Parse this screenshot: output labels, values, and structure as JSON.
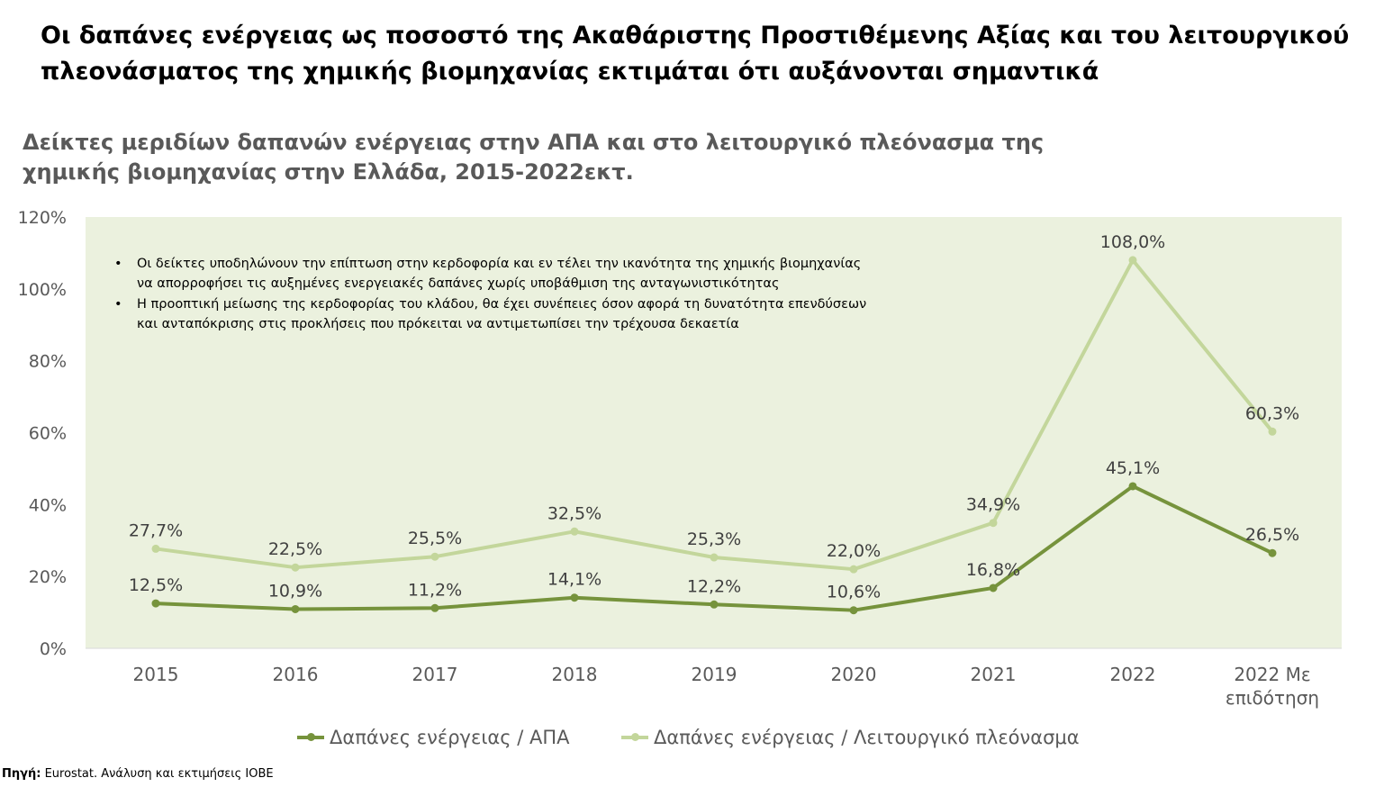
{
  "headline": "Οι δαπάνες ενέργειας ως ποσοστό της Ακαθάριστης Προστιθέμενης Αξίας και του λειτουργικού πλεονάσματος της χημικής βιομηχανίας εκτιμάται ότι αυξάνονται σημαντικά",
  "notes": [
    "Οι δείκτες υποδηλώνουν την επίπτωση στην κερδοφορία και εν τέλει την ικανότητα της χημικής βιομηχανίας να απορροφήσει τις αυξημένες ενεργειακές δαπάνες χωρίς υποβάθμιση της ανταγωνιστικότητας",
    "Η προοπτική μείωσης της κερδοφορίας του κλάδου, θα έχει συνέπειες όσον αφορά τη δυνατότητα επενδύσεων και ανταπόκρισης στις προκλήσεις που πρόκειται να αντιμετωπίσει την τρέχουσα δεκαετία"
  ],
  "source": {
    "label": "Πηγή:",
    "text": "Eurostat. Ανάλυση και εκτιμήσεις ΙΟΒΕ"
  },
  "colors": {
    "plot_bg": "#ebf1de",
    "series_dark": "#76933c",
    "series_light": "#c3d69b",
    "axis_text": "#595959"
  },
  "chart_data": {
    "type": "line",
    "title": "Δείκτες μεριδίων δαπανών ενέργειας στην ΑΠΑ και στο λειτουργικό πλεόνασμα της χημικής βιομηχανίας στην Ελλάδα, 2015-2022εκτ.",
    "categories": [
      "2015",
      "2016",
      "2017",
      "2018",
      "2019",
      "2020",
      "2021",
      "2022",
      "2022 Με επιδότηση"
    ],
    "y_ticks": [
      "0%",
      "20%",
      "40%",
      "60%",
      "80%",
      "100%",
      "120%"
    ],
    "ylim": [
      0,
      120
    ],
    "grid": false,
    "legend_position": "bottom",
    "series": [
      {
        "name": "Δαπάνες ενέργειας / ΑΠΑ",
        "values": [
          12.5,
          10.9,
          11.2,
          14.1,
          12.2,
          10.6,
          16.8,
          45.1,
          26.5
        ],
        "labels": [
          "12,5%",
          "10,9%",
          "11,2%",
          "14,1%",
          "12,2%",
          "10,6%",
          "16,8%",
          "45,1%",
          "26,5%"
        ]
      },
      {
        "name": "Δαπάνες ενέργειας / Λειτουργικό πλεόνασμα",
        "values": [
          27.7,
          22.5,
          25.5,
          32.5,
          25.3,
          22.0,
          34.9,
          108.0,
          60.3
        ],
        "labels": [
          "27,7%",
          "22,5%",
          "25,5%",
          "32,5%",
          "25,3%",
          "22,0%",
          "34,9%",
          "108,0%",
          "60,3%"
        ]
      }
    ]
  }
}
